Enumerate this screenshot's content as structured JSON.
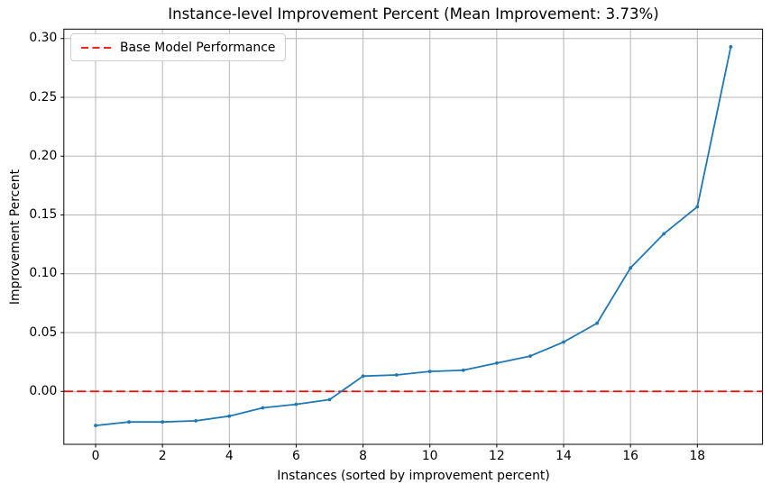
{
  "chart_data": {
    "type": "line",
    "title": "Instance-level Improvement Percent (Mean Improvement: 3.73%)",
    "xlabel": "Instances (sorted by improvement percent)",
    "ylabel": "Improvement Percent",
    "mean_improvement_percent": 3.73,
    "x": [
      0,
      1,
      2,
      3,
      4,
      5,
      6,
      7,
      8,
      9,
      10,
      11,
      12,
      13,
      14,
      15,
      16,
      17,
      18,
      19
    ],
    "y": [
      -0.029,
      -0.026,
      -0.026,
      -0.025,
      -0.021,
      -0.014,
      -0.011,
      -0.007,
      0.013,
      0.014,
      0.017,
      0.018,
      0.024,
      0.03,
      0.042,
      0.058,
      0.105,
      0.134,
      0.157,
      0.293
    ],
    "series_name": "instance-improvement",
    "line_color": "#1f77b4",
    "marker": "dot",
    "baseline": {
      "value": 0.0,
      "color": "#ff0000",
      "style": "dashed",
      "label": "Base Model Performance"
    },
    "legend_entries": [
      {
        "label": "Base Model Performance",
        "color": "#ff0000",
        "style": "dashed"
      }
    ],
    "legend_position": "upper left",
    "grid": true,
    "grid_color": "#b5b5b5",
    "axis_color": "#000000",
    "xlim": [
      -0.95,
      19.95
    ],
    "ylim": [
      -0.045,
      0.308
    ],
    "xticks": [
      0,
      2,
      4,
      6,
      8,
      10,
      12,
      14,
      16,
      18
    ],
    "xtick_labels": [
      "0",
      "2",
      "4",
      "6",
      "8",
      "10",
      "12",
      "14",
      "16",
      "18"
    ],
    "yticks": [
      0.0,
      0.05,
      0.1,
      0.15,
      0.2,
      0.25,
      0.3
    ],
    "ytick_labels": [
      "0.00",
      "0.05",
      "0.10",
      "0.15",
      "0.20",
      "0.25",
      "0.30"
    ]
  }
}
